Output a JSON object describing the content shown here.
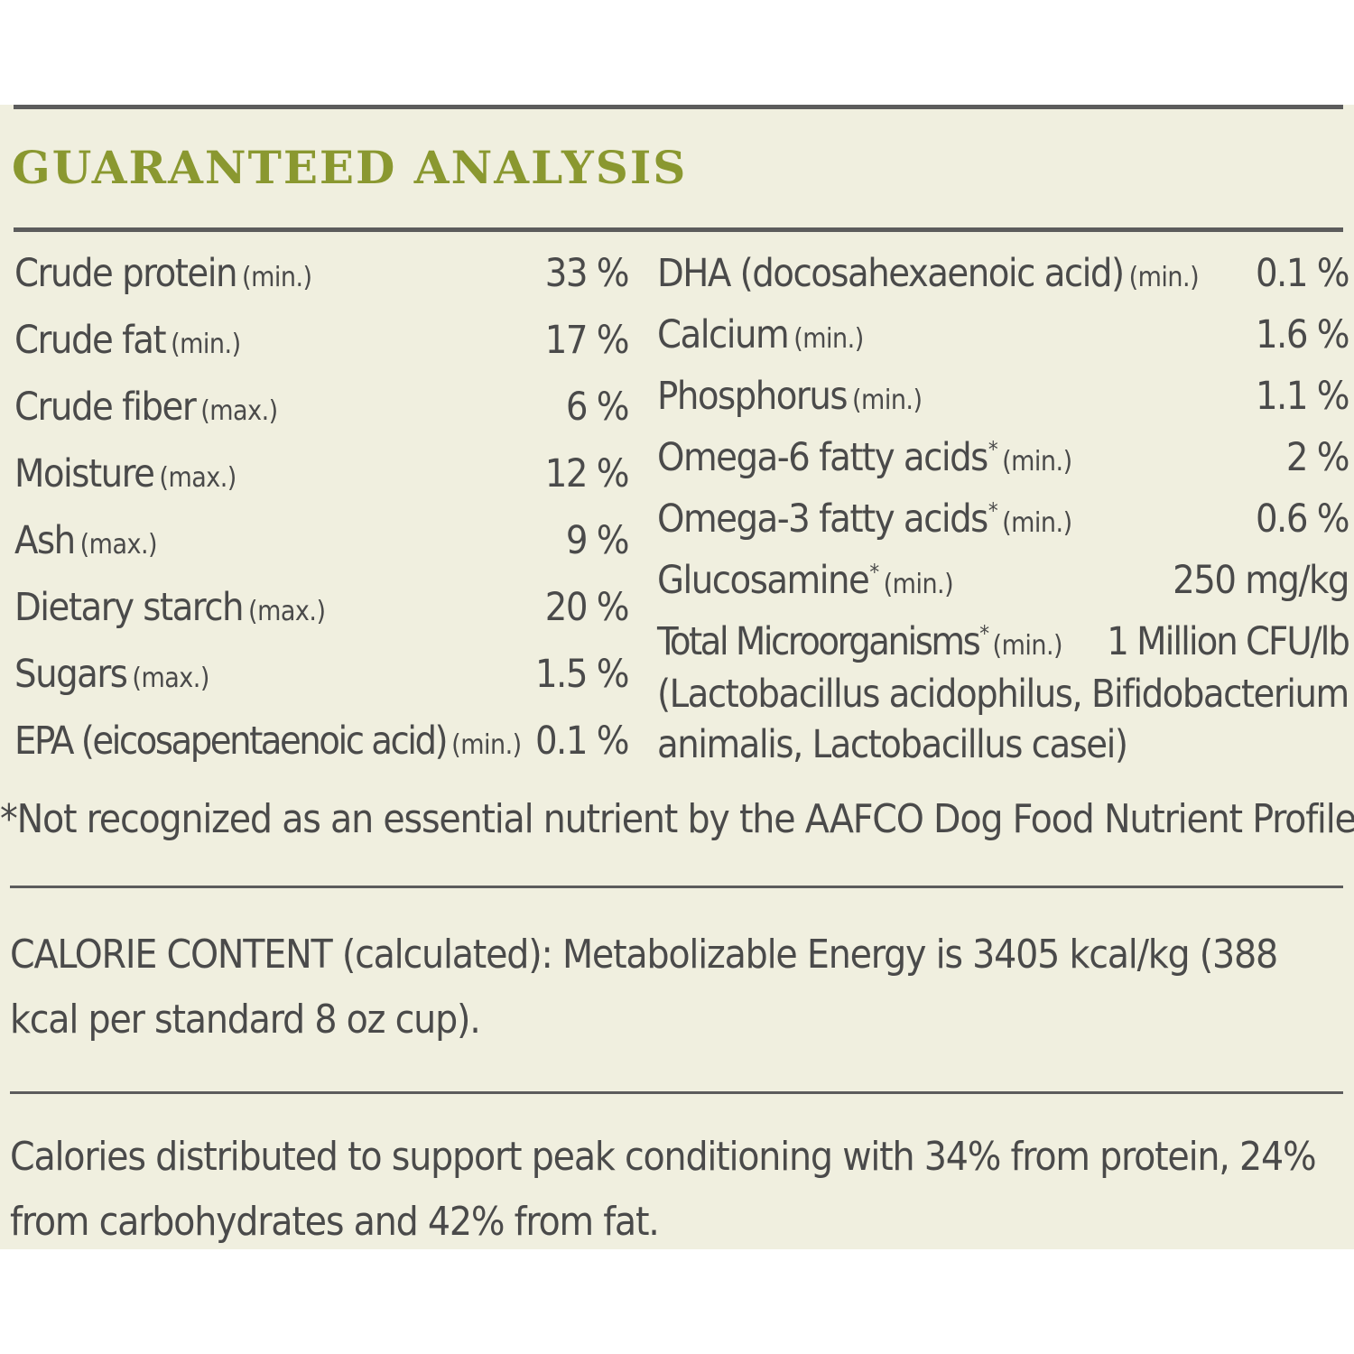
{
  "heading": "GUARANTEED ANALYSIS",
  "left_items": [
    {
      "name": "Crude protein",
      "qualifier": "(min.)",
      "value": "33 %"
    },
    {
      "name": "Crude fat",
      "qualifier": "(min.)",
      "value": "17 %"
    },
    {
      "name": "Crude fiber",
      "qualifier": "(max.)",
      "value": "6 %"
    },
    {
      "name": "Moisture",
      "qualifier": "(max.)",
      "value": "12 %"
    },
    {
      "name": "Ash",
      "qualifier": "(max.)",
      "value": "9 %"
    },
    {
      "name": "Dietary starch",
      "qualifier": "(max.)",
      "value": "20 %"
    },
    {
      "name": "Sugars",
      "qualifier": "(max.)",
      "value": "1.5 %"
    },
    {
      "name": "EPA (eicosapentaenoic acid)",
      "qualifier": "(min.)",
      "value": "0.1 %"
    }
  ],
  "right_items": [
    {
      "name": "DHA (docosahexaenoic acid)",
      "star": "",
      "qualifier": "(min.)",
      "value": "0.1 %"
    },
    {
      "name": "Calcium",
      "star": "",
      "qualifier": "(min.)",
      "value": "1.6 %"
    },
    {
      "name": "Phosphorus",
      "star": "",
      "qualifier": "(min.)",
      "value": "1.1 %"
    },
    {
      "name": "Omega-6 fatty acids",
      "star": "*",
      "qualifier": "(min.)",
      "value": "2 %"
    },
    {
      "name": "Omega-3 fatty acids",
      "star": "*",
      "qualifier": "(min.)",
      "value": "0.6 %"
    },
    {
      "name": "Glucosamine",
      "star": "*",
      "qualifier": "(min.)",
      "value": "250 mg/kg"
    },
    {
      "name": "Total Microorganisms",
      "star": "*",
      "qualifier": "(min.)",
      "value": "1 Million CFU/lb"
    }
  ],
  "microorganisms_detail": [
    "(Lactobacillus acidophilus, Bifidobacterium",
    "animalis, Lactobacillus casei)"
  ],
  "footnote": "*Not recognized as an essential nutrient by the AAFCO Dog Food Nutrient Profiles",
  "calorie_content": "CALORIE CONTENT (calculated): Metabolizable Energy is 3405 kcal/kg (388 kcal per standard 8 oz cup).",
  "calorie_distribution": "Calories distributed to support peak conditioning with 34% from protein, 24% from carbohydrates and 42% from fat."
}
